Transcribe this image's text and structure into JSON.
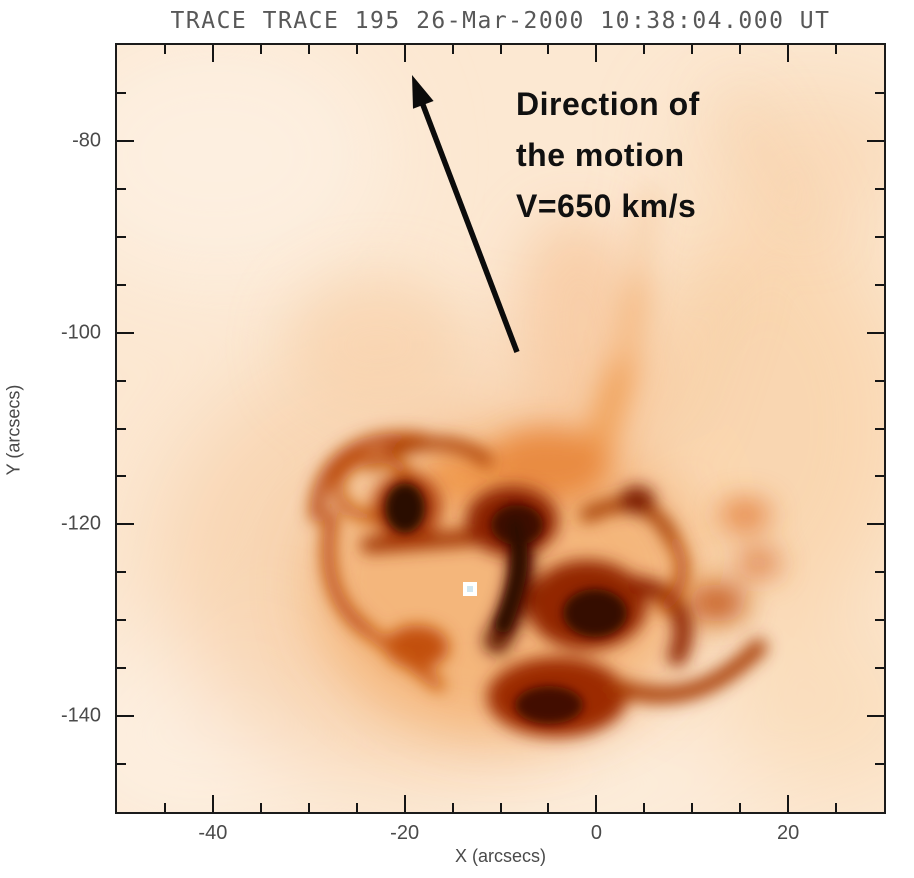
{
  "figure": {
    "annotation": {
      "lines": [
        "Direction of",
        "the motion",
        "V=650 km/s"
      ]
    },
    "marker": {
      "shape": "white-square",
      "x_arcsec": -13,
      "y_arcsec": -127
    }
  },
  "chart_data": {
    "type": "heatmap",
    "title": "TRACE TRACE 195 26-Mar-2000 10:38:04.000 UT",
    "xlabel": "X (arcsecs)",
    "ylabel": "Y (arcsecs)",
    "xlim": [
      -50,
      30
    ],
    "ylim": [
      -150,
      -70
    ],
    "x_major_ticks": [
      -40,
      -20,
      0,
      20
    ],
    "y_major_ticks": [
      -80,
      -100,
      -120,
      -140
    ],
    "minor_tick_step_arcsec": 5,
    "grid": false,
    "legend": "none",
    "colormap": "inverted red-orange (darker = brighter EUV emission)",
    "content_description": "Flaring active-region loop complex centered near (-13, -127) arcsec; diffuse plume extends upward toward annotation arrow",
    "annotations": [
      {
        "type": "arrow",
        "text": "Direction of the motion V=650 km/s",
        "tail_data_xy": [
          -8.3,
          -102.0
        ],
        "tip_data_xy": [
          -19.2,
          -73.1
        ]
      },
      {
        "type": "marker",
        "shape": "white-square",
        "data_xy": [
          -13,
          -127
        ]
      }
    ],
    "palette": {
      "page_background": "#ffffff",
      "field_base": "#fce8d2",
      "faint_cloud": "#f8d2ab",
      "mid_orange": "#ef9447",
      "strong_orange": "#ee7d1c",
      "red_orange": "#c24a05",
      "dark_red": "#8c2400",
      "darkest_core": "#2a0700",
      "frame": "#1b1b1b",
      "tick_label": "#4a4a4a",
      "title_gray": "#585858",
      "annotation_text": "#101010",
      "marker_white": "#ffffff"
    }
  }
}
